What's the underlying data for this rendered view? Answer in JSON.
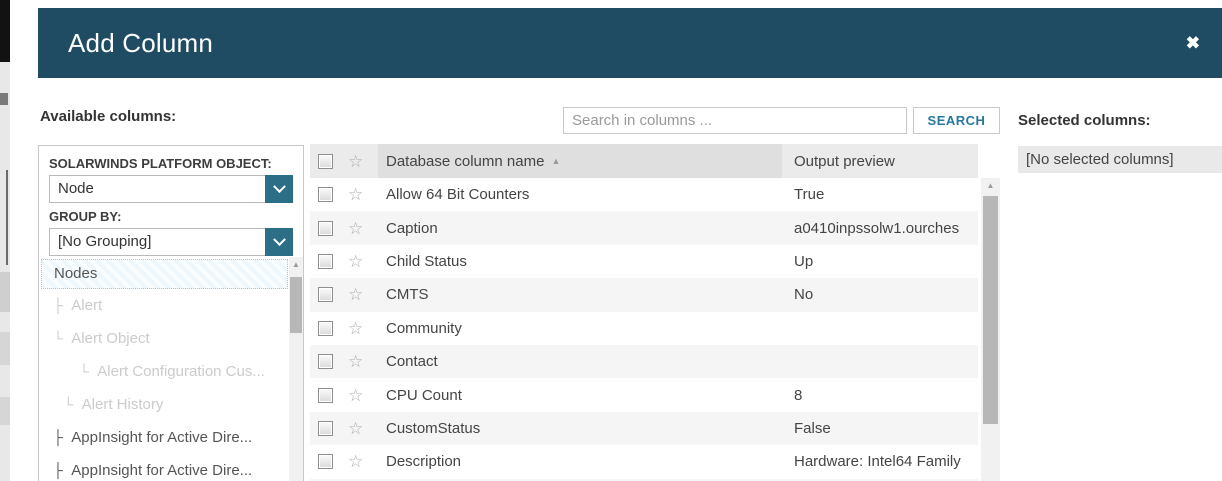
{
  "dialog": {
    "title": "Add Column"
  },
  "icons": {
    "close": "✖",
    "sort_asc": "▲",
    "star": "☆",
    "scroll_up": "▲"
  },
  "labels": {
    "available_columns": "Available columns:",
    "selected_columns": "Selected columns:",
    "platform_object": "SOLARWINDS PLATFORM OBJECT:",
    "group_by": "GROUP BY:"
  },
  "selects": {
    "platform_object_value": "Node",
    "group_by_value": "[No Grouping]"
  },
  "tree": {
    "selected_item": "Nodes",
    "items": [
      {
        "label": "Alert",
        "glyph": "├",
        "depth": 1,
        "enabled": false
      },
      {
        "label": "Alert Object",
        "glyph": "└",
        "depth": 1,
        "enabled": false
      },
      {
        "label": "Alert Configuration Cus...",
        "glyph": "└",
        "depth": 2,
        "enabled": false
      },
      {
        "label": "Alert History",
        "glyph": "└",
        "depth": 1.4,
        "enabled": false
      },
      {
        "label": "AppInsight for Active Dire...",
        "glyph": "├",
        "depth": 1,
        "enabled": true
      },
      {
        "label": "AppInsight for Active Dire...",
        "glyph": "├",
        "depth": 1,
        "enabled": true
      }
    ]
  },
  "search": {
    "placeholder": "Search in columns ...",
    "button_label": "SEARCH"
  },
  "table": {
    "headers": {
      "name": "Database column name",
      "preview": "Output preview"
    },
    "sort": {
      "column": "Database column name",
      "direction": "ascending"
    },
    "rows": [
      {
        "name": "Allow 64 Bit Counters",
        "preview": "True"
      },
      {
        "name": "Caption",
        "preview": "a0410inpssolw1.ourches"
      },
      {
        "name": "Child Status",
        "preview": "Up"
      },
      {
        "name": "CMTS",
        "preview": "No"
      },
      {
        "name": "Community",
        "preview": ""
      },
      {
        "name": "Contact",
        "preview": ""
      },
      {
        "name": "CPU Count",
        "preview": "8"
      },
      {
        "name": "CustomStatus",
        "preview": "False"
      },
      {
        "name": "Description",
        "preview": "Hardware: Intel64 Family"
      }
    ]
  },
  "right": {
    "empty_text": "[No selected columns]"
  },
  "colors": {
    "header_bg": "#1f4b63",
    "dropdown_accent": "#2b6e86",
    "search_button_text": "#2678a0",
    "row_stripe": "#f5f5f5",
    "sorted_header_bg": "#dfdfdf",
    "tree_selected_border": "#9ec9dd"
  }
}
